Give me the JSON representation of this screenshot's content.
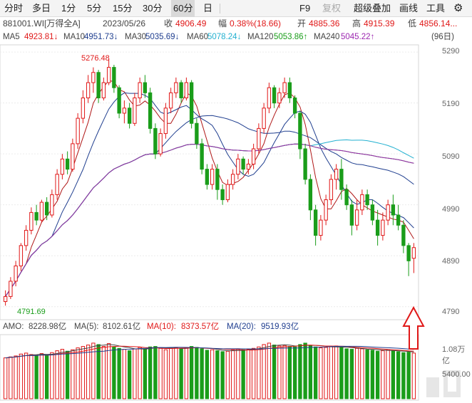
{
  "toolbar": {
    "timeframes": [
      "分时",
      "多日",
      "1分",
      "5分",
      "15分",
      "30分",
      "60分",
      "日"
    ],
    "active": "60分",
    "f9": "F9",
    "restore": "复权",
    "overlay": "超级叠加",
    "draw": "画线",
    "tools": "工具"
  },
  "info": {
    "code": "881001.WI[万得全A]",
    "date": "2023/05/26",
    "close_label": "收",
    "close": "4906.49",
    "change_label": "幅",
    "change": "0.38%(18.66)",
    "open_label": "开",
    "open": "4885.36",
    "high_label": "高",
    "high": "4915.39",
    "low_label": "低",
    "low": "4856.14..."
  },
  "ma": {
    "ma5_label": "MA5",
    "ma5": "4923.81↓",
    "ma10_label": "MA10",
    "ma10": "4951.73↓",
    "ma30_label": "MA30",
    "ma30": "5035.69↓",
    "ma60_label": "MA60",
    "ma60": "5078.24↓",
    "ma120_label": "MA120",
    "ma120": "5053.86↑",
    "ma240_label": "MA240",
    "ma240": "5045.22↑",
    "period": "(96日)"
  },
  "price_axis": [
    "5290",
    "5190",
    "5090",
    "4990",
    "4890",
    "4790"
  ],
  "annotations": {
    "high": "5276.48",
    "low": "4791.69"
  },
  "amo": {
    "amo_label": "AMO:",
    "amo": "8228.98亿",
    "ma5_label": "MA(5):",
    "ma5": "8102.61亿",
    "ma10_label": "MA(10):",
    "ma10": "8373.57亿",
    "ma20_label": "MA(20):",
    "ma20": "9519.93亿"
  },
  "volume_axis": [
    "1.08万亿",
    "5400.00"
  ],
  "colors": {
    "up": "#e01818",
    "down": "#1a9d1a",
    "ma5": "#b01818",
    "ma10": "#1f3e8f",
    "ma30": "#1f3e8f",
    "ma60": "#22b0d0",
    "ma120": "#1a9d1a",
    "ma240": "#9c27b0"
  },
  "chart_data": {
    "type": "candlestick",
    "ylim": [
      4770,
      5300
    ],
    "candles": [
      [
        4800,
        4810,
        4792,
        4822
      ],
      [
        4810,
        4840,
        4805,
        4848
      ],
      [
        4840,
        4870,
        4830,
        4880
      ],
      [
        4870,
        4910,
        4860,
        4915
      ],
      [
        4910,
        4940,
        4900,
        4950
      ],
      [
        4940,
        4975,
        4932,
        4985
      ],
      [
        4975,
        4960,
        4950,
        4990
      ],
      [
        4960,
        4995,
        4955,
        5000
      ],
      [
        4995,
        4970,
        4960,
        5005
      ],
      [
        4970,
        5010,
        4965,
        5020
      ],
      [
        5010,
        5050,
        5000,
        5060
      ],
      [
        5050,
        5080,
        5040,
        5090
      ],
      [
        5080,
        5060,
        5050,
        5095
      ],
      [
        5060,
        5110,
        5055,
        5120
      ],
      [
        5110,
        5160,
        5100,
        5170
      ],
      [
        5160,
        5200,
        5150,
        5215
      ],
      [
        5200,
        5230,
        5190,
        5245
      ],
      [
        5230,
        5250,
        5210,
        5260
      ],
      [
        5250,
        5200,
        5190,
        5255
      ],
      [
        5200,
        5230,
        5195,
        5240
      ],
      [
        5230,
        5260,
        5225,
        5276
      ],
      [
        5260,
        5220,
        5210,
        5265
      ],
      [
        5220,
        5170,
        5160,
        5225
      ],
      [
        5170,
        5180,
        5150,
        5195
      ],
      [
        5180,
        5150,
        5140,
        5190
      ],
      [
        5150,
        5200,
        5145,
        5210
      ],
      [
        5200,
        5230,
        5190,
        5240
      ],
      [
        5230,
        5210,
        5200,
        5245
      ],
      [
        5210,
        5140,
        5130,
        5220
      ],
      [
        5140,
        5090,
        5080,
        5150
      ],
      [
        5090,
        5130,
        5085,
        5140
      ],
      [
        5130,
        5180,
        5120,
        5190
      ],
      [
        5180,
        5210,
        5170,
        5220
      ],
      [
        5210,
        5230,
        5200,
        5240
      ],
      [
        5230,
        5200,
        5190,
        5235
      ],
      [
        5200,
        5230,
        5195,
        5240
      ],
      [
        5230,
        5150,
        5140,
        5235
      ],
      [
        5150,
        5110,
        5100,
        5160
      ],
      [
        5110,
        5060,
        5050,
        5120
      ],
      [
        5060,
        5030,
        5020,
        5070
      ],
      [
        5030,
        5060,
        5020,
        5070
      ],
      [
        5060,
        5020,
        5000,
        5070
      ],
      [
        5020,
        5000,
        4990,
        5030
      ],
      [
        5000,
        5030,
        4995,
        5040
      ],
      [
        5030,
        5050,
        5020,
        5060
      ],
      [
        5050,
        5080,
        5040,
        5090
      ],
      [
        5080,
        5060,
        5050,
        5085
      ],
      [
        5060,
        5070,
        5050,
        5080
      ],
      [
        5070,
        5100,
        5060,
        5110
      ],
      [
        5100,
        5140,
        5090,
        5150
      ],
      [
        5140,
        5180,
        5130,
        5190
      ],
      [
        5180,
        5220,
        5170,
        5230
      ],
      [
        5220,
        5190,
        5180,
        5225
      ],
      [
        5190,
        5210,
        5180,
        5220
      ],
      [
        5210,
        5230,
        5200,
        5240
      ],
      [
        5230,
        5200,
        5190,
        5240
      ],
      [
        5200,
        5170,
        5160,
        5205
      ],
      [
        5170,
        5100,
        5080,
        5175
      ],
      [
        5100,
        5040,
        5030,
        5110
      ],
      [
        5040,
        4980,
        4960,
        5050
      ],
      [
        4980,
        4930,
        4910,
        4990
      ],
      [
        4930,
        4960,
        4920,
        4970
      ],
      [
        4960,
        5000,
        4950,
        5010
      ],
      [
        5000,
        5040,
        4990,
        5050
      ],
      [
        5040,
        5060,
        5020,
        5070
      ],
      [
        5060,
        5020,
        5000,
        5080
      ],
      [
        5020,
        4990,
        4980,
        5030
      ],
      [
        4990,
        4950,
        4930,
        5000
      ],
      [
        4950,
        4980,
        4940,
        5000
      ],
      [
        4980,
        5010,
        4970,
        5020
      ],
      [
        5010,
        4990,
        4980,
        5020
      ],
      [
        4990,
        4960,
        4950,
        5000
      ],
      [
        4960,
        4930,
        4910,
        4980
      ],
      [
        4930,
        4960,
        4920,
        4975
      ],
      [
        4960,
        4990,
        4950,
        5000
      ],
      [
        4990,
        4970,
        4950,
        5010
      ],
      [
        4970,
        4950,
        4940,
        4990
      ],
      [
        4950,
        4910,
        4895,
        4960
      ],
      [
        4910,
        4880,
        4850,
        4915
      ],
      [
        4885,
        4906,
        4856,
        4915
      ]
    ],
    "volumes": [
      8600,
      8800,
      9000,
      9400,
      9600,
      9300,
      9100,
      9500,
      9200,
      9700,
      10100,
      10400,
      10000,
      10300,
      10700,
      11000,
      11300,
      11700,
      11400,
      11000,
      11600,
      10900,
      10600,
      10400,
      10100,
      10500,
      10800,
      10400,
      10900,
      11000,
      10600,
      10300,
      10600,
      10800,
      10500,
      10700,
      11000,
      10800,
      10500,
      10200,
      10300,
      10100,
      9900,
      10000,
      10200,
      10500,
      10300,
      10400,
      10600,
      10900,
      11400,
      11700,
      11300,
      11100,
      11200,
      11000,
      10900,
      11400,
      11700,
      11200,
      10900,
      10700,
      10800,
      11000,
      11100,
      10800,
      10500,
      10400,
      10600,
      10500,
      10300,
      10200,
      10000,
      10100,
      10300,
      10100,
      9900,
      9700,
      9800,
      9600
    ]
  }
}
